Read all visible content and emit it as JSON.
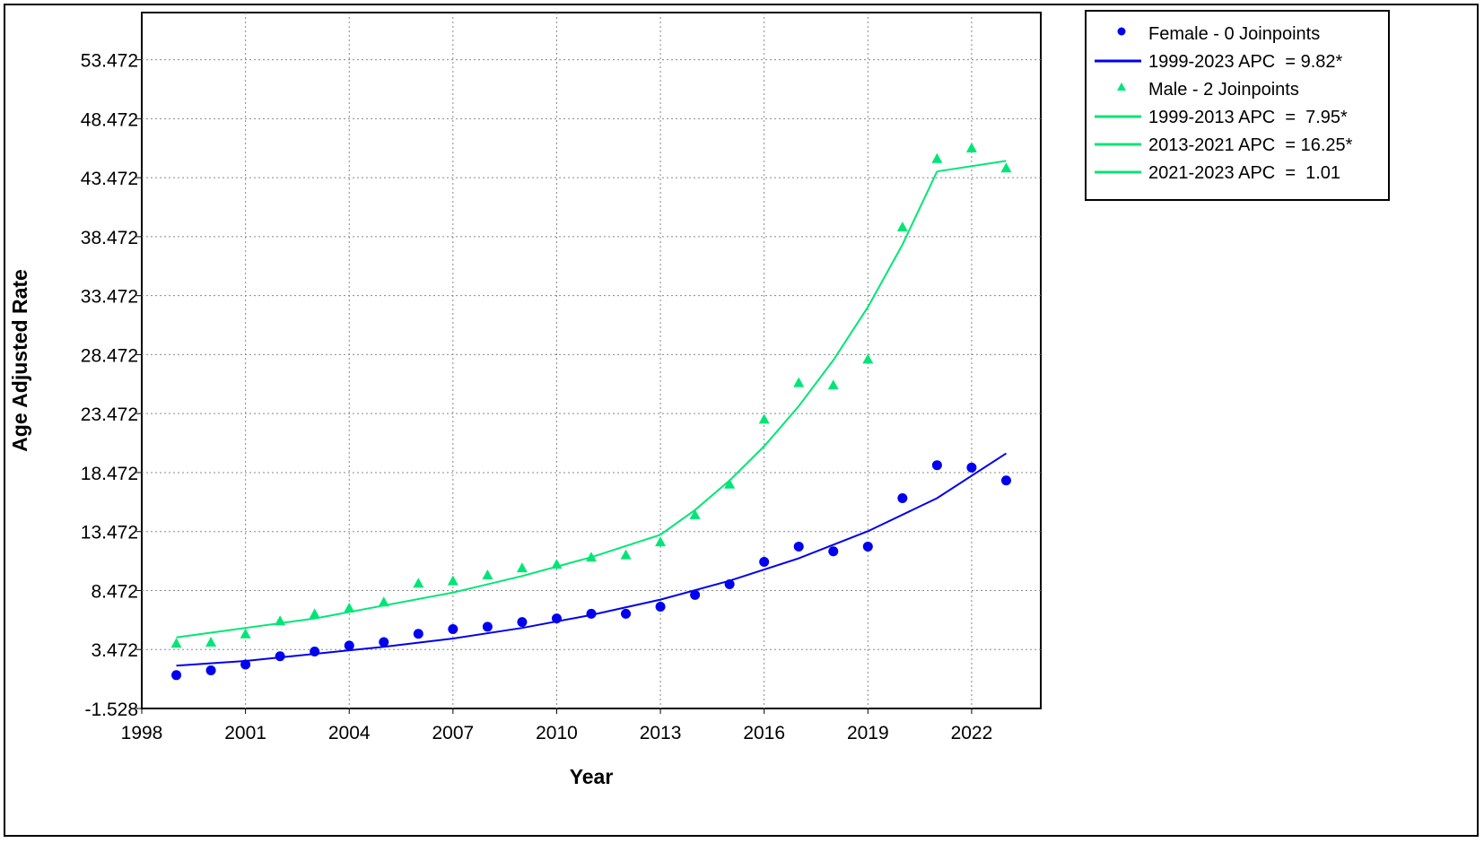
{
  "chart_data": {
    "type": "scatter",
    "xlabel": "Year",
    "ylabel": "Age Adjusted Rate",
    "xlim": [
      1998,
      2024
    ],
    "ylim": [
      -1.528,
      57.472
    ],
    "x_ticks": [
      "1998",
      "2001",
      "2004",
      "2007",
      "2010",
      "2013",
      "2016",
      "2019",
      "2022"
    ],
    "y_ticks": [
      "-1.528",
      "3.472",
      "8.472",
      "13.472",
      "18.472",
      "23.472",
      "28.472",
      "33.472",
      "38.472",
      "43.472",
      "48.472",
      "53.472"
    ],
    "grid": true,
    "legend_position": "top-right, outside plot",
    "colors": {
      "female": "#0000ee",
      "male": "#00e676"
    },
    "series": [
      {
        "name": "Female - 0 Joinpoints",
        "kind": "observed",
        "marker": "circle",
        "x": [
          1999,
          2000,
          2001,
          2002,
          2003,
          2004,
          2005,
          2006,
          2007,
          2008,
          2009,
          2010,
          2011,
          2012,
          2013,
          2014,
          2015,
          2016,
          2017,
          2018,
          2019,
          2020,
          2021,
          2022,
          2023
        ],
        "values": [
          1.3,
          1.7,
          2.2,
          2.9,
          3.3,
          3.8,
          4.1,
          4.8,
          5.2,
          5.4,
          5.8,
          6.1,
          6.5,
          6.5,
          7.1,
          8.1,
          9.0,
          10.9,
          12.2,
          11.8,
          12.2,
          16.3,
          19.1,
          18.9,
          17.8
        ]
      },
      {
        "name": "1999-2023 APC  = 9.82*",
        "kind": "fitted",
        "x": [
          1999,
          2001,
          2003,
          2005,
          2007,
          2009,
          2011,
          2013,
          2015,
          2017,
          2019,
          2021,
          2023
        ],
        "values": [
          2.1,
          2.5,
          3.1,
          3.7,
          4.4,
          5.3,
          6.4,
          7.7,
          9.3,
          11.2,
          13.5,
          16.3,
          20.1
        ]
      },
      {
        "name": "Male - 2 Joinpoints",
        "kind": "observed",
        "marker": "triangle",
        "x": [
          1999,
          2000,
          2001,
          2002,
          2003,
          2004,
          2005,
          2006,
          2007,
          2008,
          2009,
          2010,
          2011,
          2012,
          2013,
          2014,
          2015,
          2016,
          2017,
          2018,
          2019,
          2020,
          2021,
          2022,
          2023
        ],
        "values": [
          4.0,
          4.1,
          4.8,
          5.9,
          6.5,
          7.0,
          7.5,
          9.1,
          9.3,
          9.8,
          10.4,
          10.7,
          11.3,
          11.5,
          12.6,
          14.9,
          17.5,
          23.0,
          26.1,
          25.9,
          28.1,
          39.3,
          45.1,
          46.0,
          44.3
        ]
      },
      {
        "name": "1999-2013 APC  =  7.95*",
        "kind": "fitted",
        "x": [
          1999,
          2001,
          2003,
          2005,
          2007,
          2009,
          2011,
          2013
        ],
        "values": [
          4.5,
          5.3,
          6.1,
          7.2,
          8.3,
          9.7,
          11.3,
          13.2
        ]
      },
      {
        "name": "2013-2021 APC  = 16.25*",
        "kind": "fitted",
        "x": [
          2013,
          2014,
          2015,
          2016,
          2017,
          2018,
          2019,
          2020,
          2021
        ],
        "values": [
          13.2,
          15.3,
          17.8,
          20.7,
          24.1,
          28.0,
          32.5,
          37.8,
          44.0
        ]
      },
      {
        "name": "2021-2023 APC  =  1.01",
        "kind": "fitted",
        "x": [
          2021,
          2023
        ],
        "values": [
          44.0,
          44.9
        ]
      }
    ]
  }
}
